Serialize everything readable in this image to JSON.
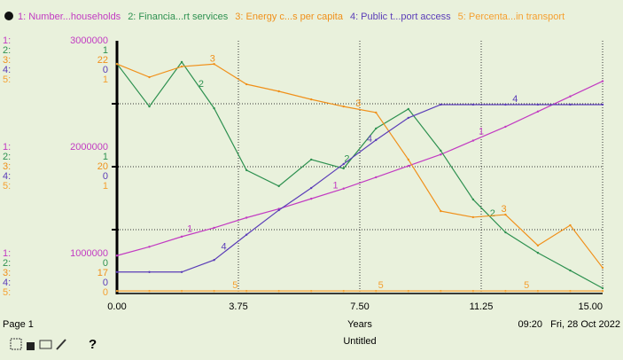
{
  "chart_data": {
    "type": "line",
    "x_label": "Years",
    "x": [
      0,
      1,
      2,
      3,
      4,
      5,
      6,
      7,
      8,
      9,
      10,
      11,
      12,
      13,
      14,
      15
    ],
    "xlim": [
      0,
      15
    ],
    "xticks": [
      {
        "value": 0,
        "label": "0.00"
      },
      {
        "value": 3.75,
        "label": "3.75"
      },
      {
        "value": 7.5,
        "label": "7.50"
      },
      {
        "value": 11.25,
        "label": "11.25"
      },
      {
        "value": 15,
        "label": "15.00"
      }
    ],
    "grid": true,
    "series": [
      {
        "name": "1: Number...households",
        "key": "1:",
        "line_label": "1",
        "color": "#c23bc2",
        "ylim": [
          1000000,
          3000000
        ],
        "yticks": [
          1000000,
          2000000,
          3000000
        ],
        "values": [
          1300000,
          1370000,
          1450000,
          1520000,
          1600000,
          1670000,
          1750000,
          1830000,
          1920000,
          2010000,
          2100000,
          2210000,
          2320000,
          2440000,
          2560000,
          2680000
        ]
      },
      {
        "name": "2: Financia...rt services",
        "key": "2:",
        "line_label": "2",
        "color": "#2e9150",
        "ylim": [
          0,
          1
        ],
        "yticks": [
          {
            "value": 0,
            "label": "0"
          },
          {
            "value": 0.5,
            "label": "1"
          },
          {
            "value": 1,
            "label": "1"
          }
        ],
        "values": [
          0.909,
          0.74,
          0.916,
          0.733,
          0.488,
          0.425,
          0.53,
          0.495,
          0.653,
          0.73,
          0.565,
          0.372,
          0.242,
          0.161,
          0.091,
          0.021
        ]
      },
      {
        "name": "3: Energy c...s per capita",
        "key": "3:",
        "line_label": "3",
        "color": "#f0901a",
        "ylim": [
          17,
          22
        ],
        "yticks": [
          17,
          {
            "value": 19.5,
            "label": "20"
          },
          22
        ],
        "values": [
          21.54,
          21.28,
          21.49,
          21.54,
          21.14,
          21.0,
          20.84,
          20.7,
          20.58,
          19.65,
          18.63,
          18.51,
          18.56,
          17.95,
          18.35,
          17.51
        ]
      },
      {
        "name": "4: Public t...port access",
        "key": "4:",
        "line_label": "4",
        "color": "#5b3db8",
        "ylim": [
          0,
          0.4
        ],
        "yticks": [
          0,
          {
            "value": 0.2,
            "label": "0"
          },
          {
            "value": 0.4,
            "label": "0"
          }
        ],
        "values": [
          0.034,
          0.034,
          0.034,
          0.053,
          0.093,
          0.132,
          0.167,
          0.205,
          0.243,
          0.278,
          0.299,
          0.299,
          0.299,
          0.299,
          0.299,
          0.299
        ]
      },
      {
        "name": "5: Percenta...in transport",
        "key": "5:",
        "line_label": "5",
        "color": "#f5a030",
        "ylim": [
          0,
          1
        ],
        "yticks": [
          0,
          {
            "value": 0.5,
            "label": "1"
          },
          1
        ],
        "values": [
          0.01,
          0.01,
          0.01,
          0.01,
          0.01,
          0.01,
          0.01,
          0.01,
          0.01,
          0.01,
          0.01,
          0.01,
          0.01,
          0.01,
          0.01,
          0.01
        ]
      }
    ]
  },
  "footer": {
    "page": "Page 1",
    "time": "09:20",
    "date": "Fri, 28 Oct 2022",
    "title": "Untitled",
    "help": "?"
  }
}
